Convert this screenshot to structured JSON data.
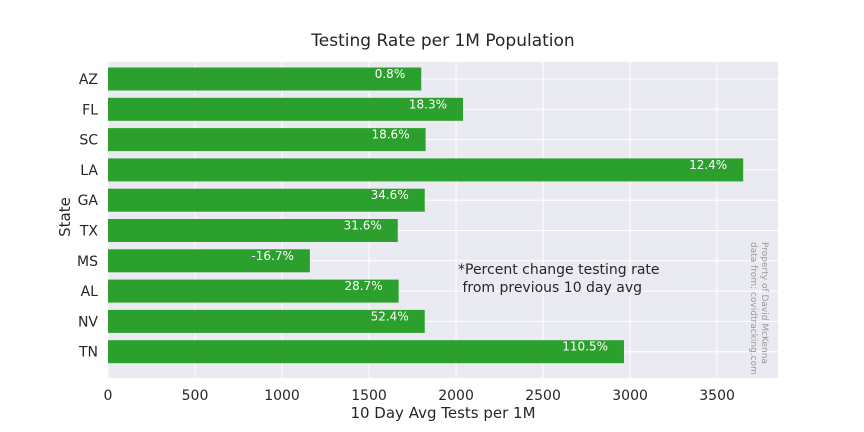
{
  "chart_data": {
    "type": "bar",
    "orientation": "horizontal",
    "title": "Testing Rate per 1M Population",
    "xlabel": "10 Day Avg Tests per 1M",
    "ylabel": "State",
    "categories": [
      "AZ",
      "FL",
      "SC",
      "LA",
      "GA",
      "TX",
      "MS",
      "AL",
      "NV",
      "TN"
    ],
    "values": [
      1800,
      2040,
      1825,
      3650,
      1820,
      1665,
      1160,
      1670,
      1820,
      2965
    ],
    "bar_labels": [
      "0.8%",
      "18.3%",
      "18.6%",
      "12.4%",
      "34.6%",
      "31.6%",
      "-16.7%",
      "28.7%",
      "52.4%",
      "110.5%"
    ],
    "xlim": [
      0,
      3850
    ],
    "xticks": [
      0,
      500,
      1000,
      1500,
      2000,
      2500,
      3000,
      3500
    ],
    "grid": true,
    "bar_color": "#2ca02c",
    "background_color": "#eaeaf2",
    "annotation_lines": [
      "*Percent change testing rate",
      " from previous 10 day avg"
    ],
    "credit_lines": [
      "Property of David McKenna",
      "data from: covidtracking.com"
    ]
  }
}
